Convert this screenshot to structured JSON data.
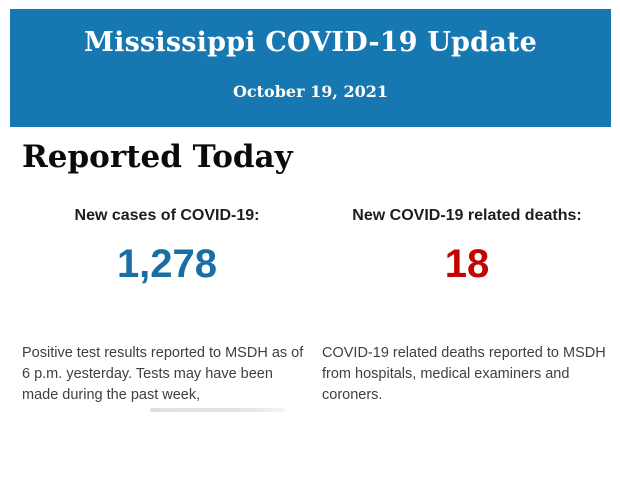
{
  "header": {
    "title": "Mississippi COVID-19 Update",
    "date": "October 19, 2021",
    "background_color": "#1777b1",
    "text_color": "#ffffff"
  },
  "main": {
    "section_title": "Reported Today",
    "stats": [
      {
        "label": "New cases of COVID-19:",
        "value": "1,278",
        "value_color": "#186fa5",
        "value_style": "color:#186fa5",
        "description": "Positive test results reported to MSDH as of 6 p.m. yesterday. Tests may have been made during the past week,"
      },
      {
        "label": "New COVID-19 related deaths:",
        "value": "18",
        "value_color": "#c40303",
        "value_style": "color:#c40303",
        "description": "COVID-19 related deaths reported to MSDH from hospitals, medical examiners and coroners."
      }
    ]
  }
}
